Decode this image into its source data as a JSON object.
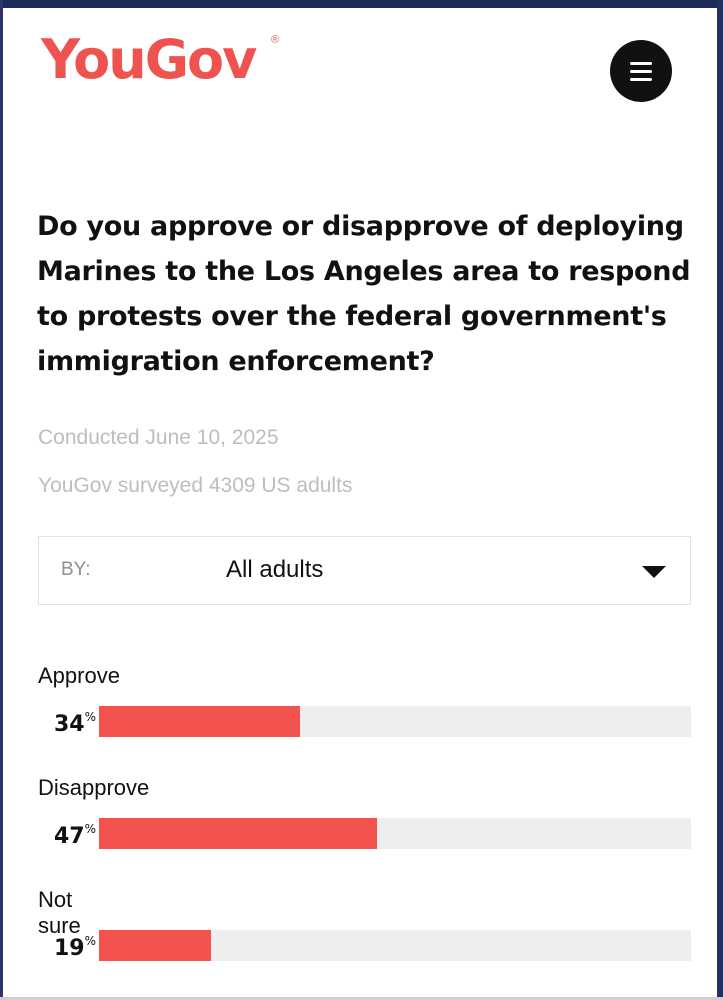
{
  "header": {
    "logo_text": "YouGov",
    "logo_mark": "®",
    "menu_icon": "hamburger-menu-icon"
  },
  "survey": {
    "question": "Do you approve or disapprove of deploying Marines to the Los Angeles area to respond to protests over the federal government's immigration enforcement?",
    "conducted": "Conducted June 10, 2025",
    "sample": "YouGov surveyed 4309 US adults"
  },
  "filter": {
    "by_label": "BY:",
    "selected": "All adults",
    "caret_icon": "chevron-down-icon"
  },
  "results": [
    {
      "label": "Approve",
      "percent": 34,
      "percent_text": "34",
      "unit": "%"
    },
    {
      "label": "Disapprove",
      "percent": 47,
      "percent_text": "47",
      "unit": "%"
    },
    {
      "label": "Not sure",
      "percent": 19,
      "percent_text": "19",
      "unit": "%"
    }
  ],
  "colors": {
    "brand": "#ef5350",
    "bar_fill": "#f2534f",
    "bar_track": "#eeeeee",
    "muted_text": "#bdbdbd"
  }
}
